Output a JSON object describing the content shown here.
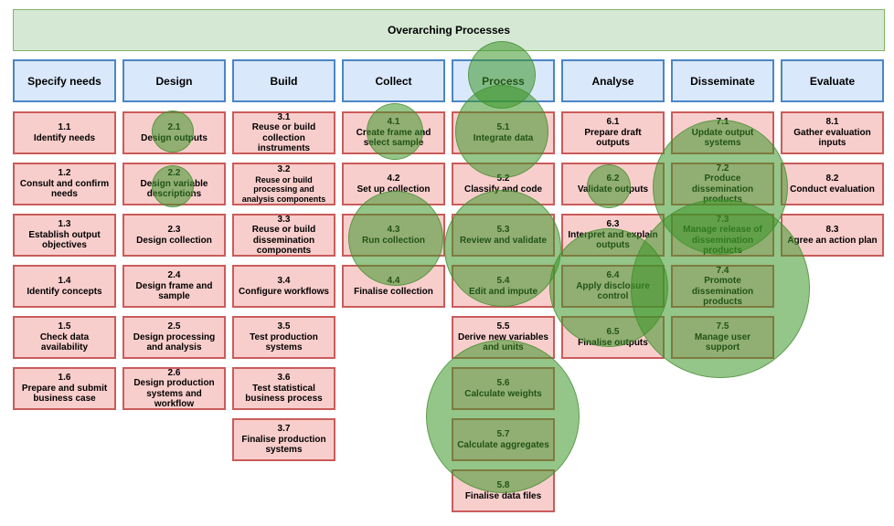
{
  "banner": {
    "title": "Overarching Processes"
  },
  "phases": [
    {
      "label": "Specify needs",
      "steps": [
        {
          "num": "1.1",
          "label": "Identify needs"
        },
        {
          "num": "1.2",
          "label": "Consult and confirm needs"
        },
        {
          "num": "1.3",
          "label": "Establish output objectives"
        },
        {
          "num": "1.4",
          "label": "Identify concepts"
        },
        {
          "num": "1.5",
          "label": "Check data availability"
        },
        {
          "num": "1.6",
          "label": "Prepare and submit business case"
        }
      ]
    },
    {
      "label": "Design",
      "steps": [
        {
          "num": "2.1",
          "label": "Design outputs"
        },
        {
          "num": "2.2",
          "label": "Design variable descriptions"
        },
        {
          "num": "2.3",
          "label": "Design collection"
        },
        {
          "num": "2.4",
          "label": "Design frame and sample"
        },
        {
          "num": "2.5",
          "label": "Design processing and analysis"
        },
        {
          "num": "2.6",
          "label": "Design production systems and workflow"
        }
      ]
    },
    {
      "label": "Build",
      "steps": [
        {
          "num": "3.1",
          "label": "Reuse or build collection instruments"
        },
        {
          "num": "3.2",
          "label": "Reuse or build processing and analysis components"
        },
        {
          "num": "3.3",
          "label": "Reuse or build dissemination components"
        },
        {
          "num": "3.4",
          "label": "Configure workflows"
        },
        {
          "num": "3.5",
          "label": "Test production systems"
        },
        {
          "num": "3.6",
          "label": "Test statistical business process"
        },
        {
          "num": "3.7",
          "label": "Finalise production systems"
        }
      ]
    },
    {
      "label": "Collect",
      "steps": [
        {
          "num": "4.1",
          "label": "Create frame and select sample"
        },
        {
          "num": "4.2",
          "label": "Set up collection"
        },
        {
          "num": "4.3",
          "label": "Run collection"
        },
        {
          "num": "4.4",
          "label": "Finalise collection"
        }
      ]
    },
    {
      "label": "Process",
      "steps": [
        {
          "num": "5.1",
          "label": "Integrate data"
        },
        {
          "num": "5.2",
          "label": "Classify and code"
        },
        {
          "num": "5.3",
          "label": "Review and validate"
        },
        {
          "num": "5.4",
          "label": "Edit and impute"
        },
        {
          "num": "5.5",
          "label": "Derive new variables and units"
        },
        {
          "num": "5.6",
          "label": "Calculate weights"
        },
        {
          "num": "5.7",
          "label": "Calculate aggregates"
        },
        {
          "num": "5.8",
          "label": "Finalise data files"
        }
      ]
    },
    {
      "label": "Analyse",
      "steps": [
        {
          "num": "6.1",
          "label": "Prepare draft outputs"
        },
        {
          "num": "6.2",
          "label": "Validate outputs"
        },
        {
          "num": "6.3",
          "label": "Interpret and explain outputs"
        },
        {
          "num": "6.4",
          "label": "Apply disclosure control"
        },
        {
          "num": "6.5",
          "label": "Finalise outputs"
        }
      ]
    },
    {
      "label": "Disseminate",
      "steps": [
        {
          "num": "7.1",
          "label": "Update output systems"
        },
        {
          "num": "7.2",
          "label": "Produce dissemination products"
        },
        {
          "num": "7.3",
          "label": "Manage release of dissemination products"
        },
        {
          "num": "7.4",
          "label": "Promote dissemination products"
        },
        {
          "num": "7.5",
          "label": "Manage user support"
        }
      ]
    },
    {
      "label": "Evaluate",
      "steps": [
        {
          "num": "8.1",
          "label": "Gather evaluation inputs"
        },
        {
          "num": "8.2",
          "label": "Conduct evaluation"
        },
        {
          "num": "8.3",
          "label": "Agree an action plan"
        }
      ]
    }
  ],
  "colors": {
    "banner_fill": "#d5e8d4",
    "phase_fill": "#dae8fc",
    "step_fill": "#f8cecc",
    "highlight": "#3c9628"
  }
}
